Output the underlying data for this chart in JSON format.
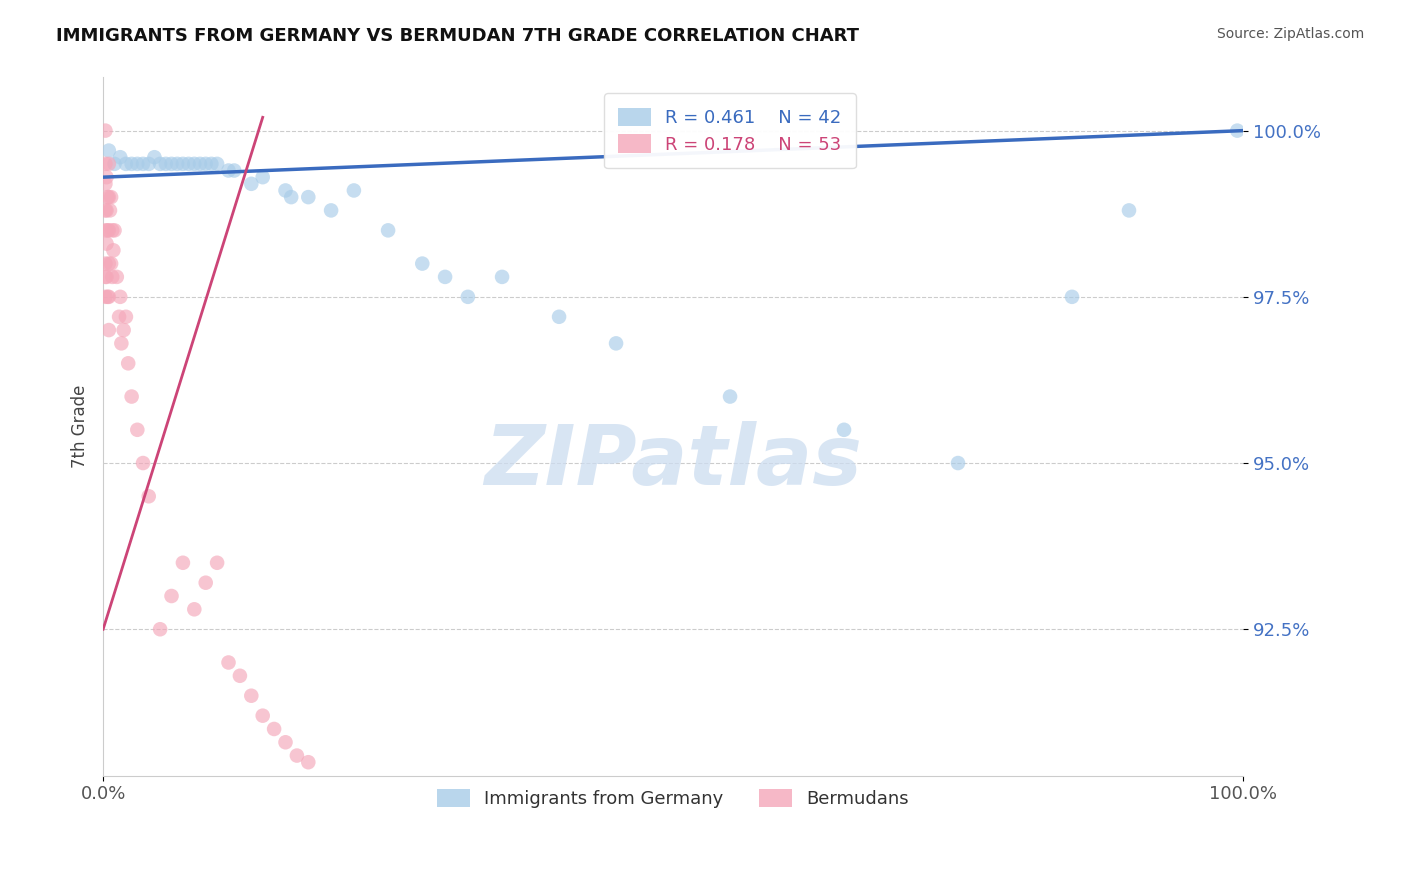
{
  "title": "IMMIGRANTS FROM GERMANY VS BERMUDAN 7TH GRADE CORRELATION CHART",
  "source": "Source: ZipAtlas.com",
  "ylabel": "7th Grade",
  "xlabel": "",
  "xlim": [
    0.0,
    100.0
  ],
  "ylim": [
    90.3,
    100.8
  ],
  "yticks": [
    92.5,
    95.0,
    97.5,
    100.0
  ],
  "xticks": [
    0.0,
    100.0
  ],
  "watermark_zip": "ZIP",
  "watermark_atlas": "atlas",
  "legend_r1": "R = 0.461",
  "legend_n1": "N = 42",
  "legend_r2": "R = 0.178",
  "legend_n2": "N = 53",
  "color_blue": "#a8cce8",
  "color_pink": "#f4a7b9",
  "color_line_blue": "#3a6bbf",
  "color_line_pink": "#cc4477",
  "color_ytick": "#4472C4",
  "color_xtick": "#555555",
  "grid_color": "#cccccc",
  "blue_x": [
    0.5,
    1.0,
    1.5,
    2.0,
    2.5,
    3.0,
    3.5,
    4.0,
    4.5,
    5.0,
    5.5,
    6.0,
    6.5,
    7.0,
    7.5,
    8.0,
    8.5,
    9.0,
    9.5,
    10.0,
    11.0,
    11.5,
    13.0,
    14.0,
    16.0,
    16.5,
    18.0,
    20.0,
    22.0,
    25.0,
    28.0,
    30.0,
    32.0,
    35.0,
    40.0,
    45.0,
    55.0,
    65.0,
    75.0,
    85.0,
    90.0,
    99.5
  ],
  "blue_y": [
    99.7,
    99.5,
    99.6,
    99.5,
    99.5,
    99.5,
    99.5,
    99.5,
    99.6,
    99.5,
    99.5,
    99.5,
    99.5,
    99.5,
    99.5,
    99.5,
    99.5,
    99.5,
    99.5,
    99.5,
    99.4,
    99.4,
    99.2,
    99.3,
    99.1,
    99.0,
    99.0,
    98.8,
    99.1,
    98.5,
    98.0,
    97.8,
    97.5,
    97.8,
    97.2,
    96.8,
    96.0,
    95.5,
    95.0,
    97.5,
    98.8,
    100.0
  ],
  "pink_x": [
    0.2,
    0.2,
    0.2,
    0.2,
    0.2,
    0.2,
    0.2,
    0.2,
    0.3,
    0.3,
    0.3,
    0.3,
    0.4,
    0.4,
    0.4,
    0.5,
    0.5,
    0.5,
    0.5,
    0.5,
    0.5,
    0.6,
    0.7,
    0.7,
    0.8,
    0.8,
    0.9,
    1.0,
    1.2,
    1.4,
    1.5,
    1.6,
    1.8,
    2.0,
    2.2,
    2.5,
    3.0,
    3.5,
    4.0,
    5.0,
    6.0,
    7.0,
    8.0,
    9.0,
    10.0,
    11.0,
    12.0,
    13.0,
    14.0,
    15.0,
    16.0,
    17.0,
    18.0
  ],
  "pink_y": [
    100.0,
    99.5,
    99.2,
    98.8,
    98.5,
    98.0,
    97.8,
    97.5,
    99.3,
    98.8,
    98.3,
    97.8,
    99.0,
    98.5,
    97.5,
    99.5,
    99.0,
    98.5,
    98.0,
    97.5,
    97.0,
    98.8,
    99.0,
    98.0,
    98.5,
    97.8,
    98.2,
    98.5,
    97.8,
    97.2,
    97.5,
    96.8,
    97.0,
    97.2,
    96.5,
    96.0,
    95.5,
    95.0,
    94.5,
    92.5,
    93.0,
    93.5,
    92.8,
    93.2,
    93.5,
    92.0,
    91.8,
    91.5,
    91.2,
    91.0,
    90.8,
    90.6,
    90.5
  ],
  "blue_line_x0": 0.0,
  "blue_line_y0": 99.3,
  "blue_line_x1": 100.0,
  "blue_line_y1": 100.0,
  "pink_line_x0": 0.0,
  "pink_line_y0": 92.5,
  "pink_line_x1": 14.0,
  "pink_line_y1": 100.2
}
